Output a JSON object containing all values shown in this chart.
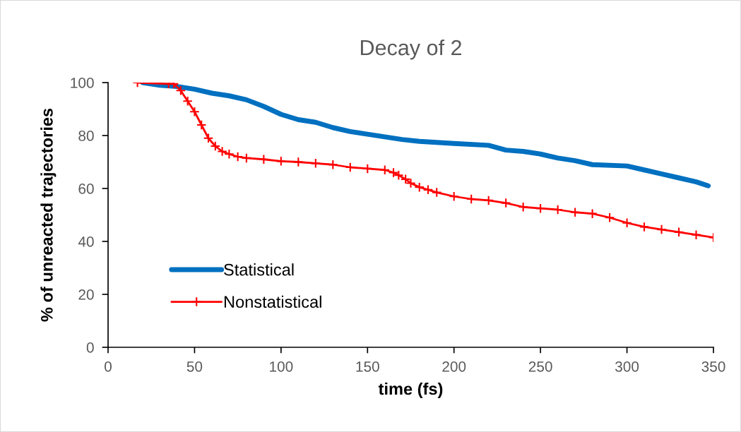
{
  "chart_data": {
    "type": "line",
    "title": "Decay of 2",
    "xlabel": "time (fs)",
    "ylabel": "% of unreacted trajectories",
    "xlim": [
      0,
      350
    ],
    "xticks": [
      0,
      50,
      100,
      150,
      200,
      250,
      300,
      350
    ],
    "ylim": [
      0,
      100
    ],
    "yticks": [
      0,
      20,
      40,
      60,
      80,
      100
    ],
    "grid": false,
    "legend": "bottom left",
    "series": [
      {
        "name": "Statistical",
        "color": "#0070c0",
        "marker": "none",
        "x": [
          20,
          30,
          40,
          50,
          60,
          70,
          80,
          90,
          100,
          110,
          120,
          130,
          140,
          150,
          160,
          170,
          180,
          200,
          220,
          230,
          240,
          250,
          260,
          270,
          280,
          300,
          310,
          320,
          330,
          340,
          347
        ],
        "values": [
          100,
          99,
          98.5,
          97.5,
          96,
          95,
          93.5,
          91,
          88,
          86,
          85,
          83,
          81.5,
          80.5,
          79.5,
          78.5,
          77.8,
          77,
          76.3,
          74.5,
          74,
          73,
          71.5,
          70.5,
          69,
          68.5,
          67,
          65.5,
          64,
          62.5,
          61
        ]
      },
      {
        "name": "Nonstatistical",
        "color": "#ff0000",
        "marker": "cross",
        "x": [
          17,
          35,
          38,
          42,
          46,
          50,
          54,
          58,
          62,
          66,
          70,
          75,
          80,
          90,
          100,
          110,
          120,
          130,
          140,
          150,
          160,
          165,
          168,
          172,
          175,
          180,
          185,
          190,
          200,
          210,
          220,
          230,
          240,
          250,
          260,
          270,
          280,
          290,
          300,
          310,
          320,
          330,
          340,
          350
        ],
        "values": [
          100,
          99.5,
          99.5,
          97,
          93,
          89,
          84,
          79,
          76,
          74,
          73,
          72,
          71.5,
          71,
          70.3,
          70,
          69.5,
          69,
          68,
          67.5,
          67,
          66,
          65,
          63.5,
          62,
          60.5,
          59.5,
          58.5,
          57,
          56,
          55.5,
          54.5,
          53,
          52.5,
          52,
          51,
          50.5,
          49,
          47,
          45.5,
          44.5,
          43.5,
          42.5,
          41.5
        ]
      }
    ]
  }
}
